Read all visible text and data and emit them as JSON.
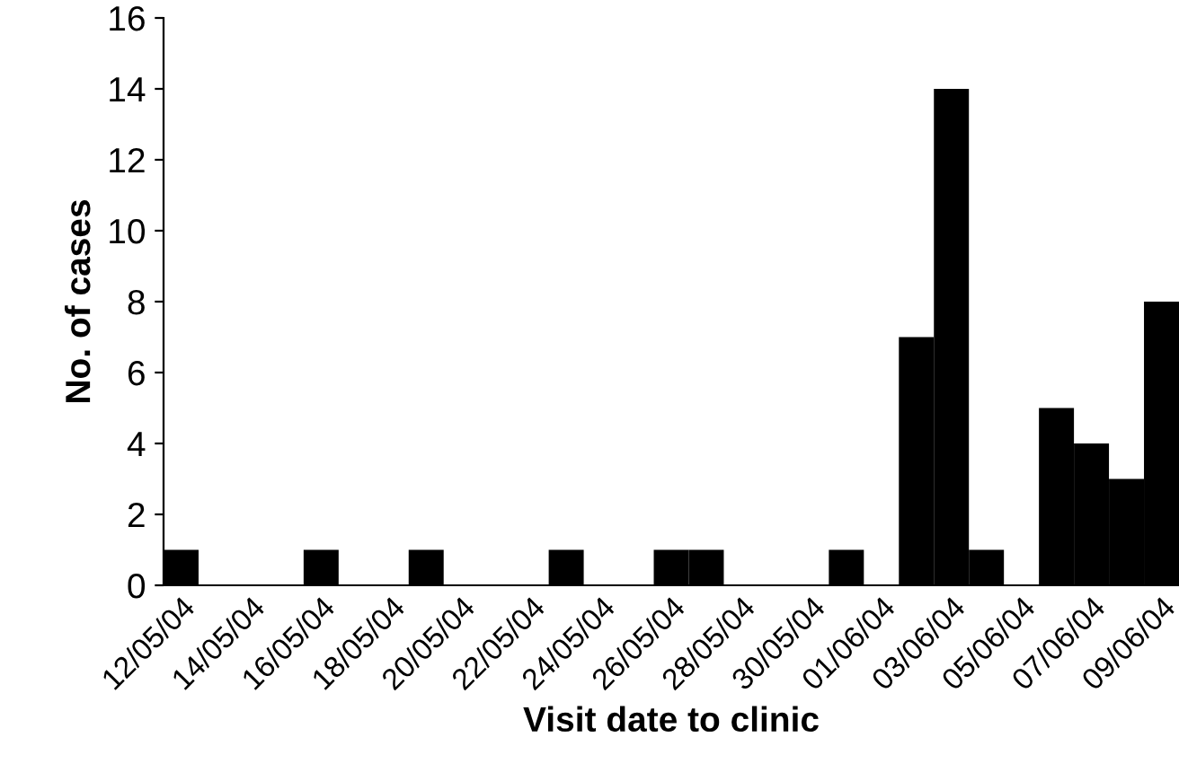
{
  "chart_data": {
    "type": "bar",
    "xlabel": "Visit date to clinic",
    "ylabel": "No. of cases",
    "categories": [
      "12/05/04",
      null,
      "14/05/04",
      null,
      "16/05/04",
      null,
      "18/05/04",
      null,
      "20/05/04",
      null,
      "22/05/04",
      null,
      "24/05/04",
      null,
      "26/05/04",
      null,
      "28/05/04",
      null,
      "30/05/04",
      null,
      "01/06/04",
      null,
      "03/06/04",
      null,
      "05/06/04",
      null,
      "07/06/04",
      null,
      "09/06/04"
    ],
    "values": [
      1,
      0,
      0,
      0,
      1,
      0,
      0,
      1,
      0,
      0,
      0,
      1,
      0,
      0,
      1,
      1,
      0,
      0,
      0,
      1,
      0,
      7,
      14,
      1,
      0,
      5,
      4,
      3,
      8
    ],
    "color": "#000000",
    "ylim": [
      0,
      16
    ],
    "yticks": [
      0,
      2,
      4,
      6,
      8,
      10,
      12,
      14,
      16
    ],
    "grid": false,
    "legend": false
  }
}
